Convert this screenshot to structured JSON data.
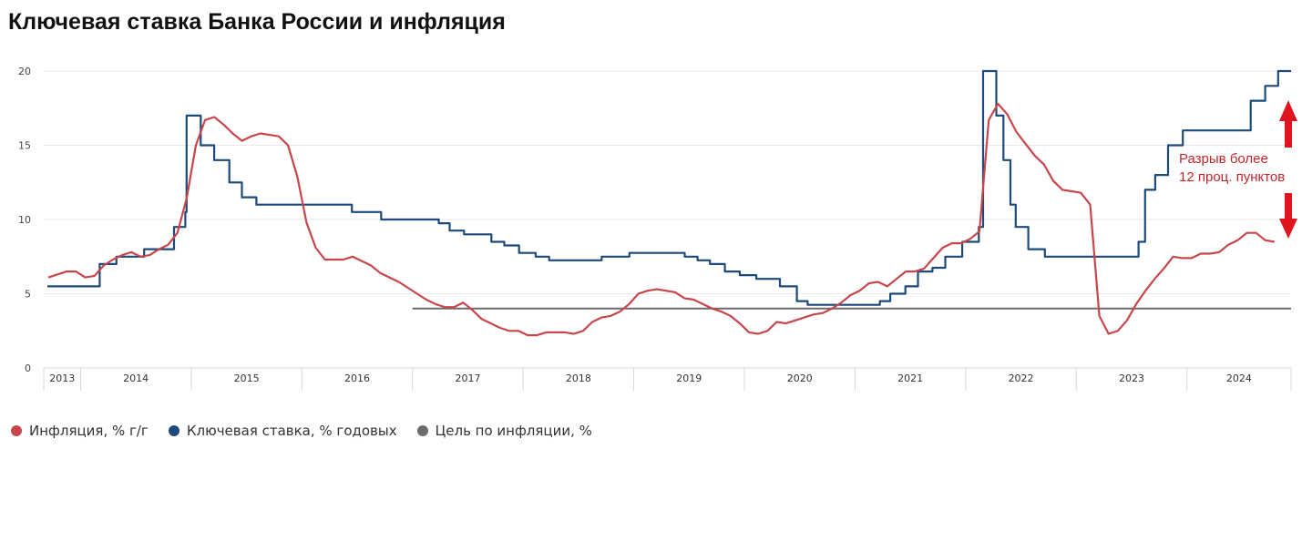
{
  "title": "Ключевая ставка Банка России и инфляция",
  "colors": {
    "inflation": "#c8464b",
    "key_rate": "#1d4a7a",
    "target": "#6b6b6b",
    "annotation": "#e0141e",
    "grid": "#e8e8e8"
  },
  "annotation": {
    "line1": "Разрыв более",
    "line2": "12 проц. пунктов",
    "icons": [
      "arrow-up-icon",
      "arrow-down-icon"
    ]
  },
  "legend": [
    {
      "label": "Инфляция, % г/г",
      "color": "#c8464b"
    },
    {
      "label": "Ключевая ставка, % годовых",
      "color": "#1d4a7a"
    },
    {
      "label": "Цель по инфляции, %",
      "color": "#6b6b6b"
    }
  ],
  "chart_data": {
    "type": "line",
    "xlim": [
      "2013-09-01",
      "2024-12-10"
    ],
    "ylim": [
      0,
      20
    ],
    "yticks": [
      0,
      5,
      10,
      15,
      20
    ],
    "xtick_labels": [
      "2013",
      "2014",
      "2015",
      "2016",
      "2017",
      "2018",
      "2019",
      "2020",
      "2021",
      "2022",
      "2023",
      "2024"
    ],
    "grid": true,
    "legend_position": "bottom-left",
    "series": [
      {
        "name": "Инфляция, % г/г",
        "kind": "line",
        "points": [
          [
            "2013-09",
            6.1
          ],
          [
            "2013-10",
            6.3
          ],
          [
            "2013-11",
            6.5
          ],
          [
            "2013-12",
            6.5
          ],
          [
            "2014-01",
            6.1
          ],
          [
            "2014-02",
            6.2
          ],
          [
            "2014-03",
            6.9
          ],
          [
            "2014-04",
            7.3
          ],
          [
            "2014-05",
            7.6
          ],
          [
            "2014-06",
            7.8
          ],
          [
            "2014-07",
            7.5
          ],
          [
            "2014-08",
            7.6
          ],
          [
            "2014-09",
            8.0
          ],
          [
            "2014-10",
            8.3
          ],
          [
            "2014-11",
            9.1
          ],
          [
            "2014-12",
            11.4
          ],
          [
            "2015-01",
            15.0
          ],
          [
            "2015-02",
            16.7
          ],
          [
            "2015-03",
            16.9
          ],
          [
            "2015-04",
            16.4
          ],
          [
            "2015-05",
            15.8
          ],
          [
            "2015-06",
            15.3
          ],
          [
            "2015-07",
            15.6
          ],
          [
            "2015-08",
            15.8
          ],
          [
            "2015-09",
            15.7
          ],
          [
            "2015-10",
            15.6
          ],
          [
            "2015-11",
            15.0
          ],
          [
            "2015-12",
            12.9
          ],
          [
            "2016-01",
            9.8
          ],
          [
            "2016-02",
            8.1
          ],
          [
            "2016-03",
            7.3
          ],
          [
            "2016-04",
            7.3
          ],
          [
            "2016-05",
            7.3
          ],
          [
            "2016-06",
            7.5
          ],
          [
            "2016-07",
            7.2
          ],
          [
            "2016-08",
            6.9
          ],
          [
            "2016-09",
            6.4
          ],
          [
            "2016-10",
            6.1
          ],
          [
            "2016-11",
            5.8
          ],
          [
            "2016-12",
            5.4
          ],
          [
            "2017-01",
            5.0
          ],
          [
            "2017-02",
            4.6
          ],
          [
            "2017-03",
            4.3
          ],
          [
            "2017-04",
            4.1
          ],
          [
            "2017-05",
            4.1
          ],
          [
            "2017-06",
            4.4
          ],
          [
            "2017-07",
            3.9
          ],
          [
            "2017-08",
            3.3
          ],
          [
            "2017-09",
            3.0
          ],
          [
            "2017-10",
            2.7
          ],
          [
            "2017-11",
            2.5
          ],
          [
            "2017-12",
            2.5
          ],
          [
            "2018-01",
            2.2
          ],
          [
            "2018-02",
            2.2
          ],
          [
            "2018-03",
            2.4
          ],
          [
            "2018-04",
            2.4
          ],
          [
            "2018-05",
            2.4
          ],
          [
            "2018-06",
            2.3
          ],
          [
            "2018-07",
            2.5
          ],
          [
            "2018-08",
            3.1
          ],
          [
            "2018-09",
            3.4
          ],
          [
            "2018-10",
            3.5
          ],
          [
            "2018-11",
            3.8
          ],
          [
            "2018-12",
            4.3
          ],
          [
            "2019-01",
            5.0
          ],
          [
            "2019-02",
            5.2
          ],
          [
            "2019-03",
            5.3
          ],
          [
            "2019-04",
            5.2
          ],
          [
            "2019-05",
            5.1
          ],
          [
            "2019-06",
            4.7
          ],
          [
            "2019-07",
            4.6
          ],
          [
            "2019-08",
            4.3
          ],
          [
            "2019-09",
            4.0
          ],
          [
            "2019-10",
            3.8
          ],
          [
            "2019-11",
            3.5
          ],
          [
            "2019-12",
            3.0
          ],
          [
            "2020-01",
            2.4
          ],
          [
            "2020-02",
            2.3
          ],
          [
            "2020-03",
            2.5
          ],
          [
            "2020-04",
            3.1
          ],
          [
            "2020-05",
            3.0
          ],
          [
            "2020-06",
            3.2
          ],
          [
            "2020-07",
            3.4
          ],
          [
            "2020-08",
            3.6
          ],
          [
            "2020-09",
            3.7
          ],
          [
            "2020-10",
            4.0
          ],
          [
            "2020-11",
            4.4
          ],
          [
            "2020-12",
            4.9
          ],
          [
            "2021-01",
            5.2
          ],
          [
            "2021-02",
            5.7
          ],
          [
            "2021-03",
            5.8
          ],
          [
            "2021-04",
            5.5
          ],
          [
            "2021-05",
            6.0
          ],
          [
            "2021-06",
            6.5
          ],
          [
            "2021-07",
            6.5
          ],
          [
            "2021-08",
            6.7
          ],
          [
            "2021-09",
            7.4
          ],
          [
            "2021-10",
            8.1
          ],
          [
            "2021-11",
            8.4
          ],
          [
            "2021-12",
            8.4
          ],
          [
            "2022-01",
            8.7
          ],
          [
            "2022-02",
            9.2
          ],
          [
            "2022-03",
            16.7
          ],
          [
            "2022-04",
            17.8
          ],
          [
            "2022-05",
            17.1
          ],
          [
            "2022-06",
            15.9
          ],
          [
            "2022-07",
            15.1
          ],
          [
            "2022-08",
            14.3
          ],
          [
            "2022-09",
            13.7
          ],
          [
            "2022-10",
            12.6
          ],
          [
            "2022-11",
            12.0
          ],
          [
            "2022-12",
            11.9
          ],
          [
            "2023-01",
            11.8
          ],
          [
            "2023-02",
            11.0
          ],
          [
            "2023-03",
            3.5
          ],
          [
            "2023-04",
            2.3
          ],
          [
            "2023-05",
            2.5
          ],
          [
            "2023-06",
            3.2
          ],
          [
            "2023-07",
            4.3
          ],
          [
            "2023-08",
            5.2
          ],
          [
            "2023-09",
            6.0
          ],
          [
            "2023-10",
            6.7
          ],
          [
            "2023-11",
            7.5
          ],
          [
            "2023-12",
            7.4
          ],
          [
            "2024-01",
            7.4
          ],
          [
            "2024-02",
            7.7
          ],
          [
            "2024-03",
            7.7
          ],
          [
            "2024-04",
            7.8
          ],
          [
            "2024-05",
            8.3
          ],
          [
            "2024-06",
            8.6
          ],
          [
            "2024-07",
            9.1
          ],
          [
            "2024-08",
            9.1
          ],
          [
            "2024-09",
            8.6
          ],
          [
            "2024-10",
            8.5
          ]
        ]
      },
      {
        "name": "Ключевая ставка, % годовых",
        "kind": "step",
        "points": [
          [
            "2013-09-13",
            5.5
          ],
          [
            "2014-03-03",
            7.0
          ],
          [
            "2014-04-28",
            7.5
          ],
          [
            "2014-07-28",
            8.0
          ],
          [
            "2014-11-05",
            9.5
          ],
          [
            "2014-12-12",
            10.5
          ],
          [
            "2014-12-16",
            17.0
          ],
          [
            "2015-02-02",
            15.0
          ],
          [
            "2015-03-16",
            14.0
          ],
          [
            "2015-05-05",
            12.5
          ],
          [
            "2015-06-16",
            11.5
          ],
          [
            "2015-08-03",
            11.0
          ],
          [
            "2016-06-14",
            10.5
          ],
          [
            "2016-09-19",
            10.0
          ],
          [
            "2017-03-27",
            9.75
          ],
          [
            "2017-05-02",
            9.25
          ],
          [
            "2017-06-19",
            9.0
          ],
          [
            "2017-09-18",
            8.5
          ],
          [
            "2017-10-30",
            8.25
          ],
          [
            "2017-12-18",
            7.75
          ],
          [
            "2018-02-12",
            7.5
          ],
          [
            "2018-03-26",
            7.25
          ],
          [
            "2018-09-17",
            7.5
          ],
          [
            "2018-12-17",
            7.75
          ],
          [
            "2019-06-17",
            7.5
          ],
          [
            "2019-07-29",
            7.25
          ],
          [
            "2019-09-09",
            7.0
          ],
          [
            "2019-10-28",
            6.5
          ],
          [
            "2019-12-16",
            6.25
          ],
          [
            "2020-02-10",
            6.0
          ],
          [
            "2020-04-27",
            5.5
          ],
          [
            "2020-06-22",
            4.5
          ],
          [
            "2020-07-27",
            4.25
          ],
          [
            "2021-03-22",
            4.5
          ],
          [
            "2021-04-26",
            5.0
          ],
          [
            "2021-06-15",
            5.5
          ],
          [
            "2021-07-26",
            6.5
          ],
          [
            "2021-09-13",
            6.75
          ],
          [
            "2021-10-25",
            7.5
          ],
          [
            "2021-12-20",
            8.5
          ],
          [
            "2022-02-14",
            9.5
          ],
          [
            "2022-02-28",
            20.0
          ],
          [
            "2022-04-11",
            17.0
          ],
          [
            "2022-05-04",
            14.0
          ],
          [
            "2022-05-27",
            11.0
          ],
          [
            "2022-06-14",
            9.5
          ],
          [
            "2022-07-25",
            8.0
          ],
          [
            "2022-09-19",
            7.5
          ],
          [
            "2023-07-24",
            8.5
          ],
          [
            "2023-08-15",
            12.0
          ],
          [
            "2023-09-18",
            13.0
          ],
          [
            "2023-10-30",
            15.0
          ],
          [
            "2023-12-18",
            16.0
          ],
          [
            "2024-07-29",
            18.0
          ],
          [
            "2024-09-16",
            19.0
          ],
          [
            "2024-10-28",
            21.0
          ]
        ]
      },
      {
        "name": "Цель по инфляции, %",
        "kind": "line",
        "points": [
          [
            "2017-01-01",
            4.0
          ],
          [
            "2024-12-10",
            4.0
          ]
        ]
      }
    ]
  }
}
